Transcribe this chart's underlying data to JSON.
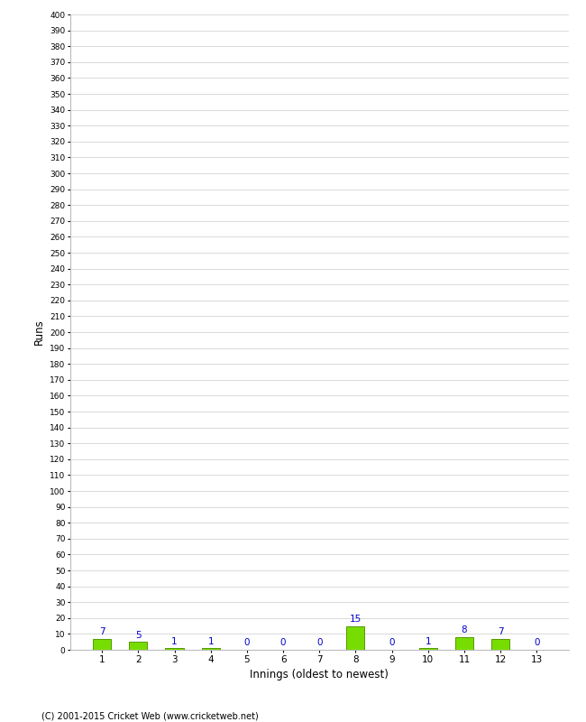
{
  "xlabel": "Innings (oldest to newest)",
  "ylabel": "Runs",
  "categories": [
    1,
    2,
    3,
    4,
    5,
    6,
    7,
    8,
    9,
    10,
    11,
    12,
    13
  ],
  "values": [
    7,
    5,
    1,
    1,
    0,
    0,
    0,
    15,
    0,
    1,
    8,
    7,
    0
  ],
  "bar_color": "#77dd00",
  "bar_edge_color": "#559900",
  "label_color": "#0000cc",
  "ylim": [
    0,
    400
  ],
  "background_color": "#ffffff",
  "grid_color": "#cccccc",
  "footer": "(C) 2001-2015 Cricket Web (www.cricketweb.net)"
}
